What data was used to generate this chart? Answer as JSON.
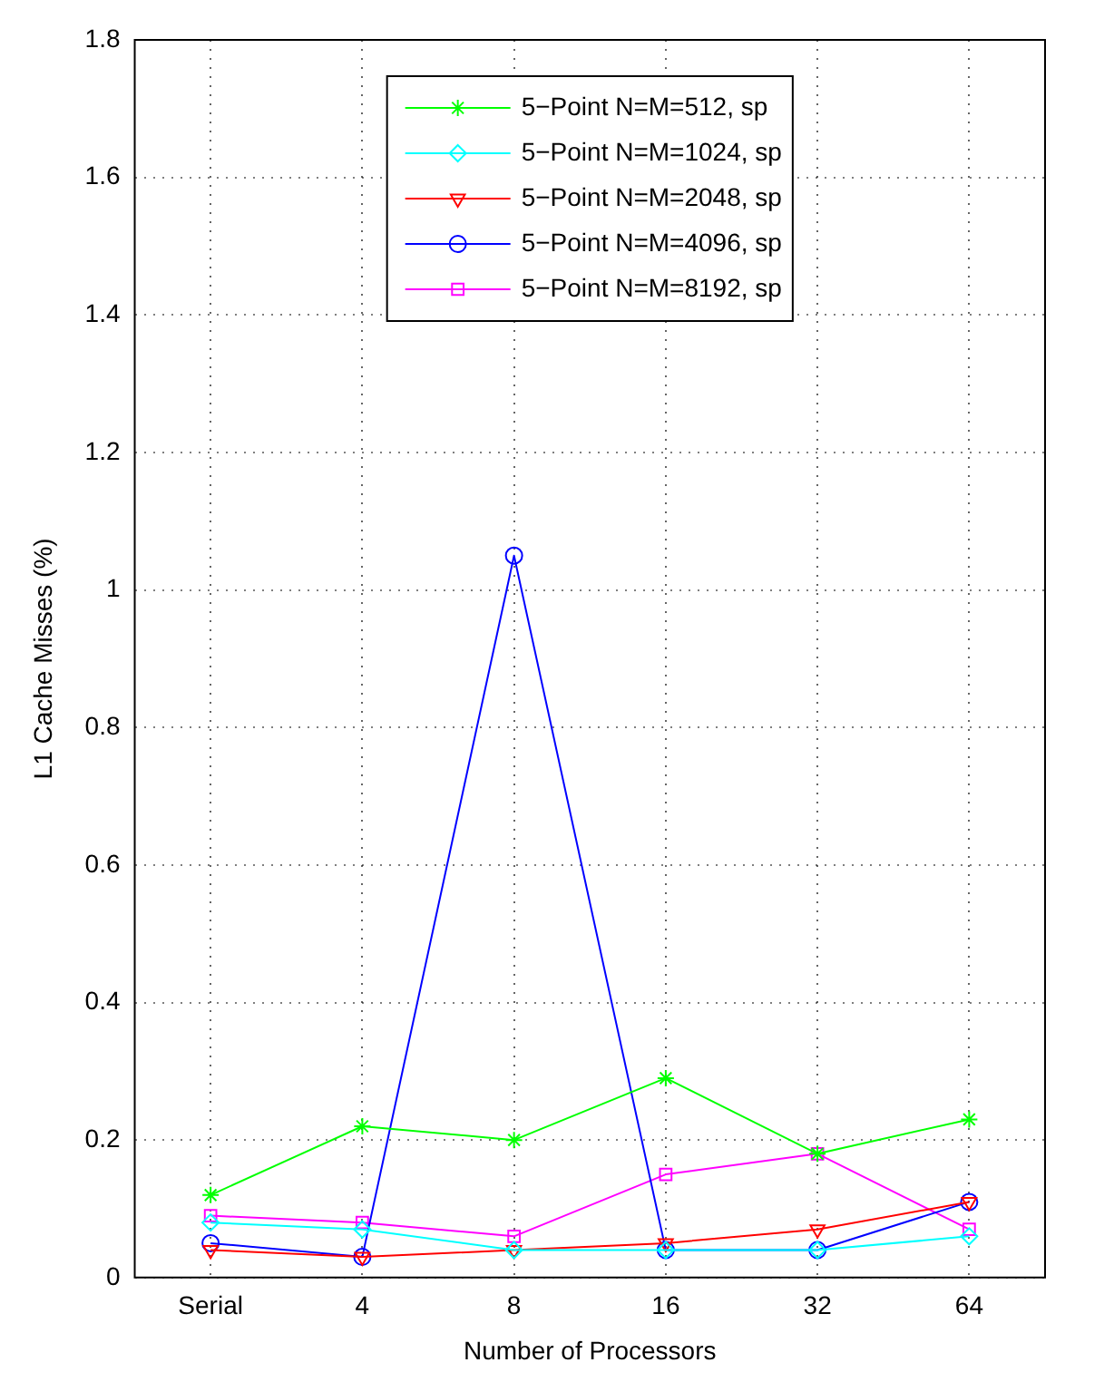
{
  "chart_data": {
    "type": "line",
    "xlabel": "Number of Processors",
    "ylabel": "L1 Cache Misses (%)",
    "categories": [
      "Serial",
      "4",
      "8",
      "16",
      "32",
      "64"
    ],
    "ylim": [
      0,
      1.8
    ],
    "yticks": [
      0,
      0.2,
      0.4,
      0.6,
      0.8,
      1,
      1.2,
      1.4,
      1.6,
      1.8
    ],
    "grid": true,
    "legend": "top",
    "series": [
      {
        "name": "5−Point N=M=512, sp",
        "color": "#00ff00",
        "marker": "cross",
        "values": [
          0.12,
          0.22,
          0.2,
          0.29,
          0.18,
          0.23
        ]
      },
      {
        "name": "5−Point N=M=1024, sp",
        "color": "#00ffff",
        "marker": "diamond",
        "values": [
          0.08,
          0.07,
          0.04,
          0.04,
          0.04,
          0.06
        ]
      },
      {
        "name": "5−Point N=M=2048, sp",
        "color": "#ff0000",
        "marker": "triangle",
        "values": [
          0.04,
          0.03,
          0.04,
          0.05,
          0.07,
          0.11
        ]
      },
      {
        "name": "5−Point N=M=4096, sp",
        "color": "#0000ff",
        "marker": "circle",
        "values": [
          0.05,
          0.03,
          1.05,
          0.04,
          0.04,
          0.11
        ]
      },
      {
        "name": "5−Point N=M=8192, sp",
        "color": "#ff00ff",
        "marker": "square",
        "values": [
          0.09,
          0.08,
          0.06,
          0.15,
          0.18,
          0.07
        ]
      }
    ]
  }
}
